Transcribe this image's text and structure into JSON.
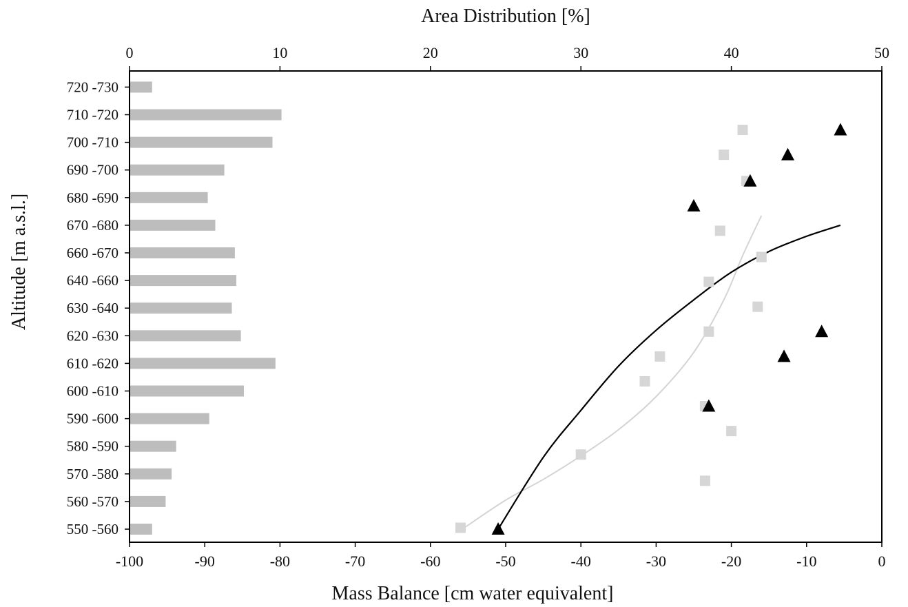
{
  "chart_data": {
    "type": "bar+scatter",
    "top_axis": {
      "label": "Area Distribution [%]",
      "range": [
        0,
        50
      ],
      "ticks": [
        0,
        10,
        20,
        30,
        40,
        50
      ]
    },
    "bottom_axis": {
      "label": "Mass Balance [cm water equivalent]",
      "range": [
        -100,
        0
      ],
      "ticks": [
        -100,
        -90,
        -80,
        -70,
        -60,
        -50,
        -40,
        -30,
        -20,
        -10,
        0
      ]
    },
    "y_axis": {
      "label": "Altitude [m a.s.l.]"
    },
    "categories": [
      "550 -560",
      "560 -570",
      "570 -580",
      "580 -590",
      "590 -600",
      "600 -610",
      "610 -620",
      "620 -630",
      "630 -640",
      "640 -660",
      "660 -670",
      "670 -680",
      "680 -690",
      "690 -700",
      "700 -710",
      "710 -720",
      "720 -730"
    ],
    "area_bars": {
      "color": "#bdbdbd",
      "values": [
        1.5,
        2.4,
        2.8,
        3.1,
        5.3,
        7.6,
        9.7,
        7.4,
        6.8,
        7.1,
        7.0,
        5.7,
        5.2,
        6.3,
        9.5,
        10.1,
        1.5
      ]
    },
    "scatter_squares": {
      "color": "#d6d6d6",
      "points": [
        {
          "x": -56,
          "y": 0.05
        },
        {
          "x": -23.5,
          "y": 1.75
        },
        {
          "x": -40,
          "y": 2.7
        },
        {
          "x": -20,
          "y": 3.55
        },
        {
          "x": -23.5,
          "y": 4.45
        },
        {
          "x": -31.5,
          "y": 5.35
        },
        {
          "x": -29.5,
          "y": 6.25
        },
        {
          "x": -23,
          "y": 7.15
        },
        {
          "x": -16.5,
          "y": 8.05
        },
        {
          "x": -23,
          "y": 8.95
        },
        {
          "x": -16,
          "y": 9.85
        },
        {
          "x": -21.5,
          "y": 10.8
        },
        {
          "x": -18,
          "y": 12.6
        },
        {
          "x": -21,
          "y": 13.55
        },
        {
          "x": -18.5,
          "y": 14.45
        }
      ]
    },
    "scatter_triangles": {
      "color": "#000000",
      "points": [
        {
          "x": -51,
          "y": 0.0
        },
        {
          "x": -23,
          "y": 4.45
        },
        {
          "x": -13,
          "y": 6.25
        },
        {
          "x": -8,
          "y": 7.15
        },
        {
          "x": -25,
          "y": 11.7
        },
        {
          "x": -17.5,
          "y": 12.6
        },
        {
          "x": -12.5,
          "y": 13.55
        },
        {
          "x": -5.5,
          "y": 14.45
        }
      ]
    },
    "fit_black": {
      "color": "#000000",
      "points": [
        [
          -51,
          0.0
        ],
        [
          -45,
          2.6
        ],
        [
          -40,
          4.3
        ],
        [
          -35,
          5.9
        ],
        [
          -30,
          7.2
        ],
        [
          -25,
          8.3
        ],
        [
          -20,
          9.3
        ],
        [
          -15,
          10.05
        ],
        [
          -10,
          10.6
        ],
        [
          -5.5,
          11.0
        ]
      ]
    },
    "fit_gray": {
      "color": "#d4d4d4",
      "points": [
        [
          -55.5,
          0.05
        ],
        [
          -50,
          1.05
        ],
        [
          -45,
          1.8
        ],
        [
          -40,
          2.65
        ],
        [
          -35,
          3.6
        ],
        [
          -30,
          4.8
        ],
        [
          -25,
          6.4
        ],
        [
          -21,
          8.3
        ],
        [
          -18.5,
          9.9
        ],
        [
          -16,
          11.35
        ]
      ]
    }
  }
}
